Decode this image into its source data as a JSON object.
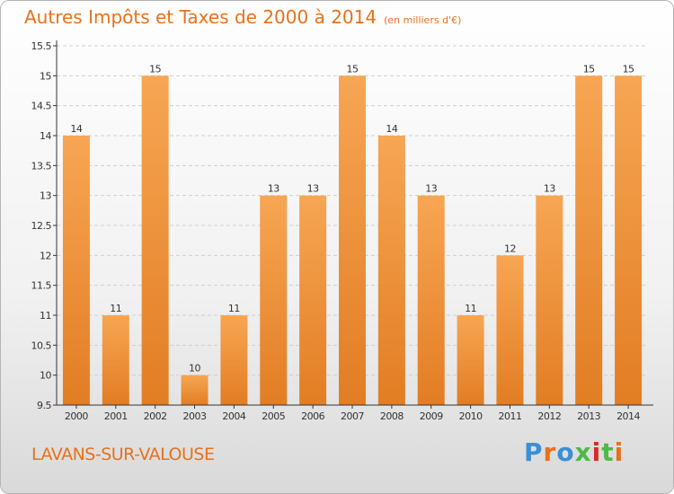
{
  "header": {
    "title": "Autres Impôts et Taxes de 2000 à 2014",
    "unit": "(en milliers d'€)"
  },
  "footer": {
    "town": "LAVANS-SUR-VALOUSE",
    "logo": {
      "text": "Proxiti",
      "letters": [
        "P",
        "r",
        "o",
        "x",
        "i",
        "t",
        "i"
      ],
      "colors": [
        "#3a8fd6",
        "#e8711b",
        "#3a8fd6",
        "#4fb848",
        "#d92a2a",
        "#4fb848",
        "#e8711b"
      ]
    }
  },
  "colors": {
    "accent": "#e8711b",
    "bar_top": "#f7a654",
    "bar_bottom": "#e27d23",
    "axis": "#333333",
    "grid": "#cfcfcf"
  },
  "chart_data": {
    "type": "bar",
    "title": "Autres Impôts et Taxes de 2000 à 2014",
    "subtitle": "(en milliers d'€)",
    "categories": [
      "2000",
      "2001",
      "2002",
      "2003",
      "2004",
      "2005",
      "2006",
      "2007",
      "2008",
      "2009",
      "2010",
      "2011",
      "2012",
      "2013",
      "2014"
    ],
    "values": [
      14,
      11,
      15,
      10,
      11,
      13,
      13,
      15,
      14,
      13,
      11,
      12,
      13,
      15,
      15
    ],
    "data_labels": [
      "14",
      "11",
      "15",
      "10",
      "11",
      "13",
      "13",
      "15",
      "14",
      "13",
      "11",
      "12",
      "13",
      "15",
      "15"
    ],
    "ylim": [
      9.5,
      15.5
    ],
    "yticks": [
      9.5,
      10,
      10.5,
      11,
      11.5,
      12,
      12.5,
      13,
      13.5,
      14,
      14.5,
      15,
      15.5
    ],
    "ytick_labels": [
      "9.5",
      "10",
      "10.5",
      "11",
      "11.5",
      "12",
      "12.5",
      "13",
      "13.5",
      "14",
      "14.5",
      "15",
      "15.5"
    ],
    "grid": true,
    "xlabel": "",
    "ylabel": ""
  }
}
